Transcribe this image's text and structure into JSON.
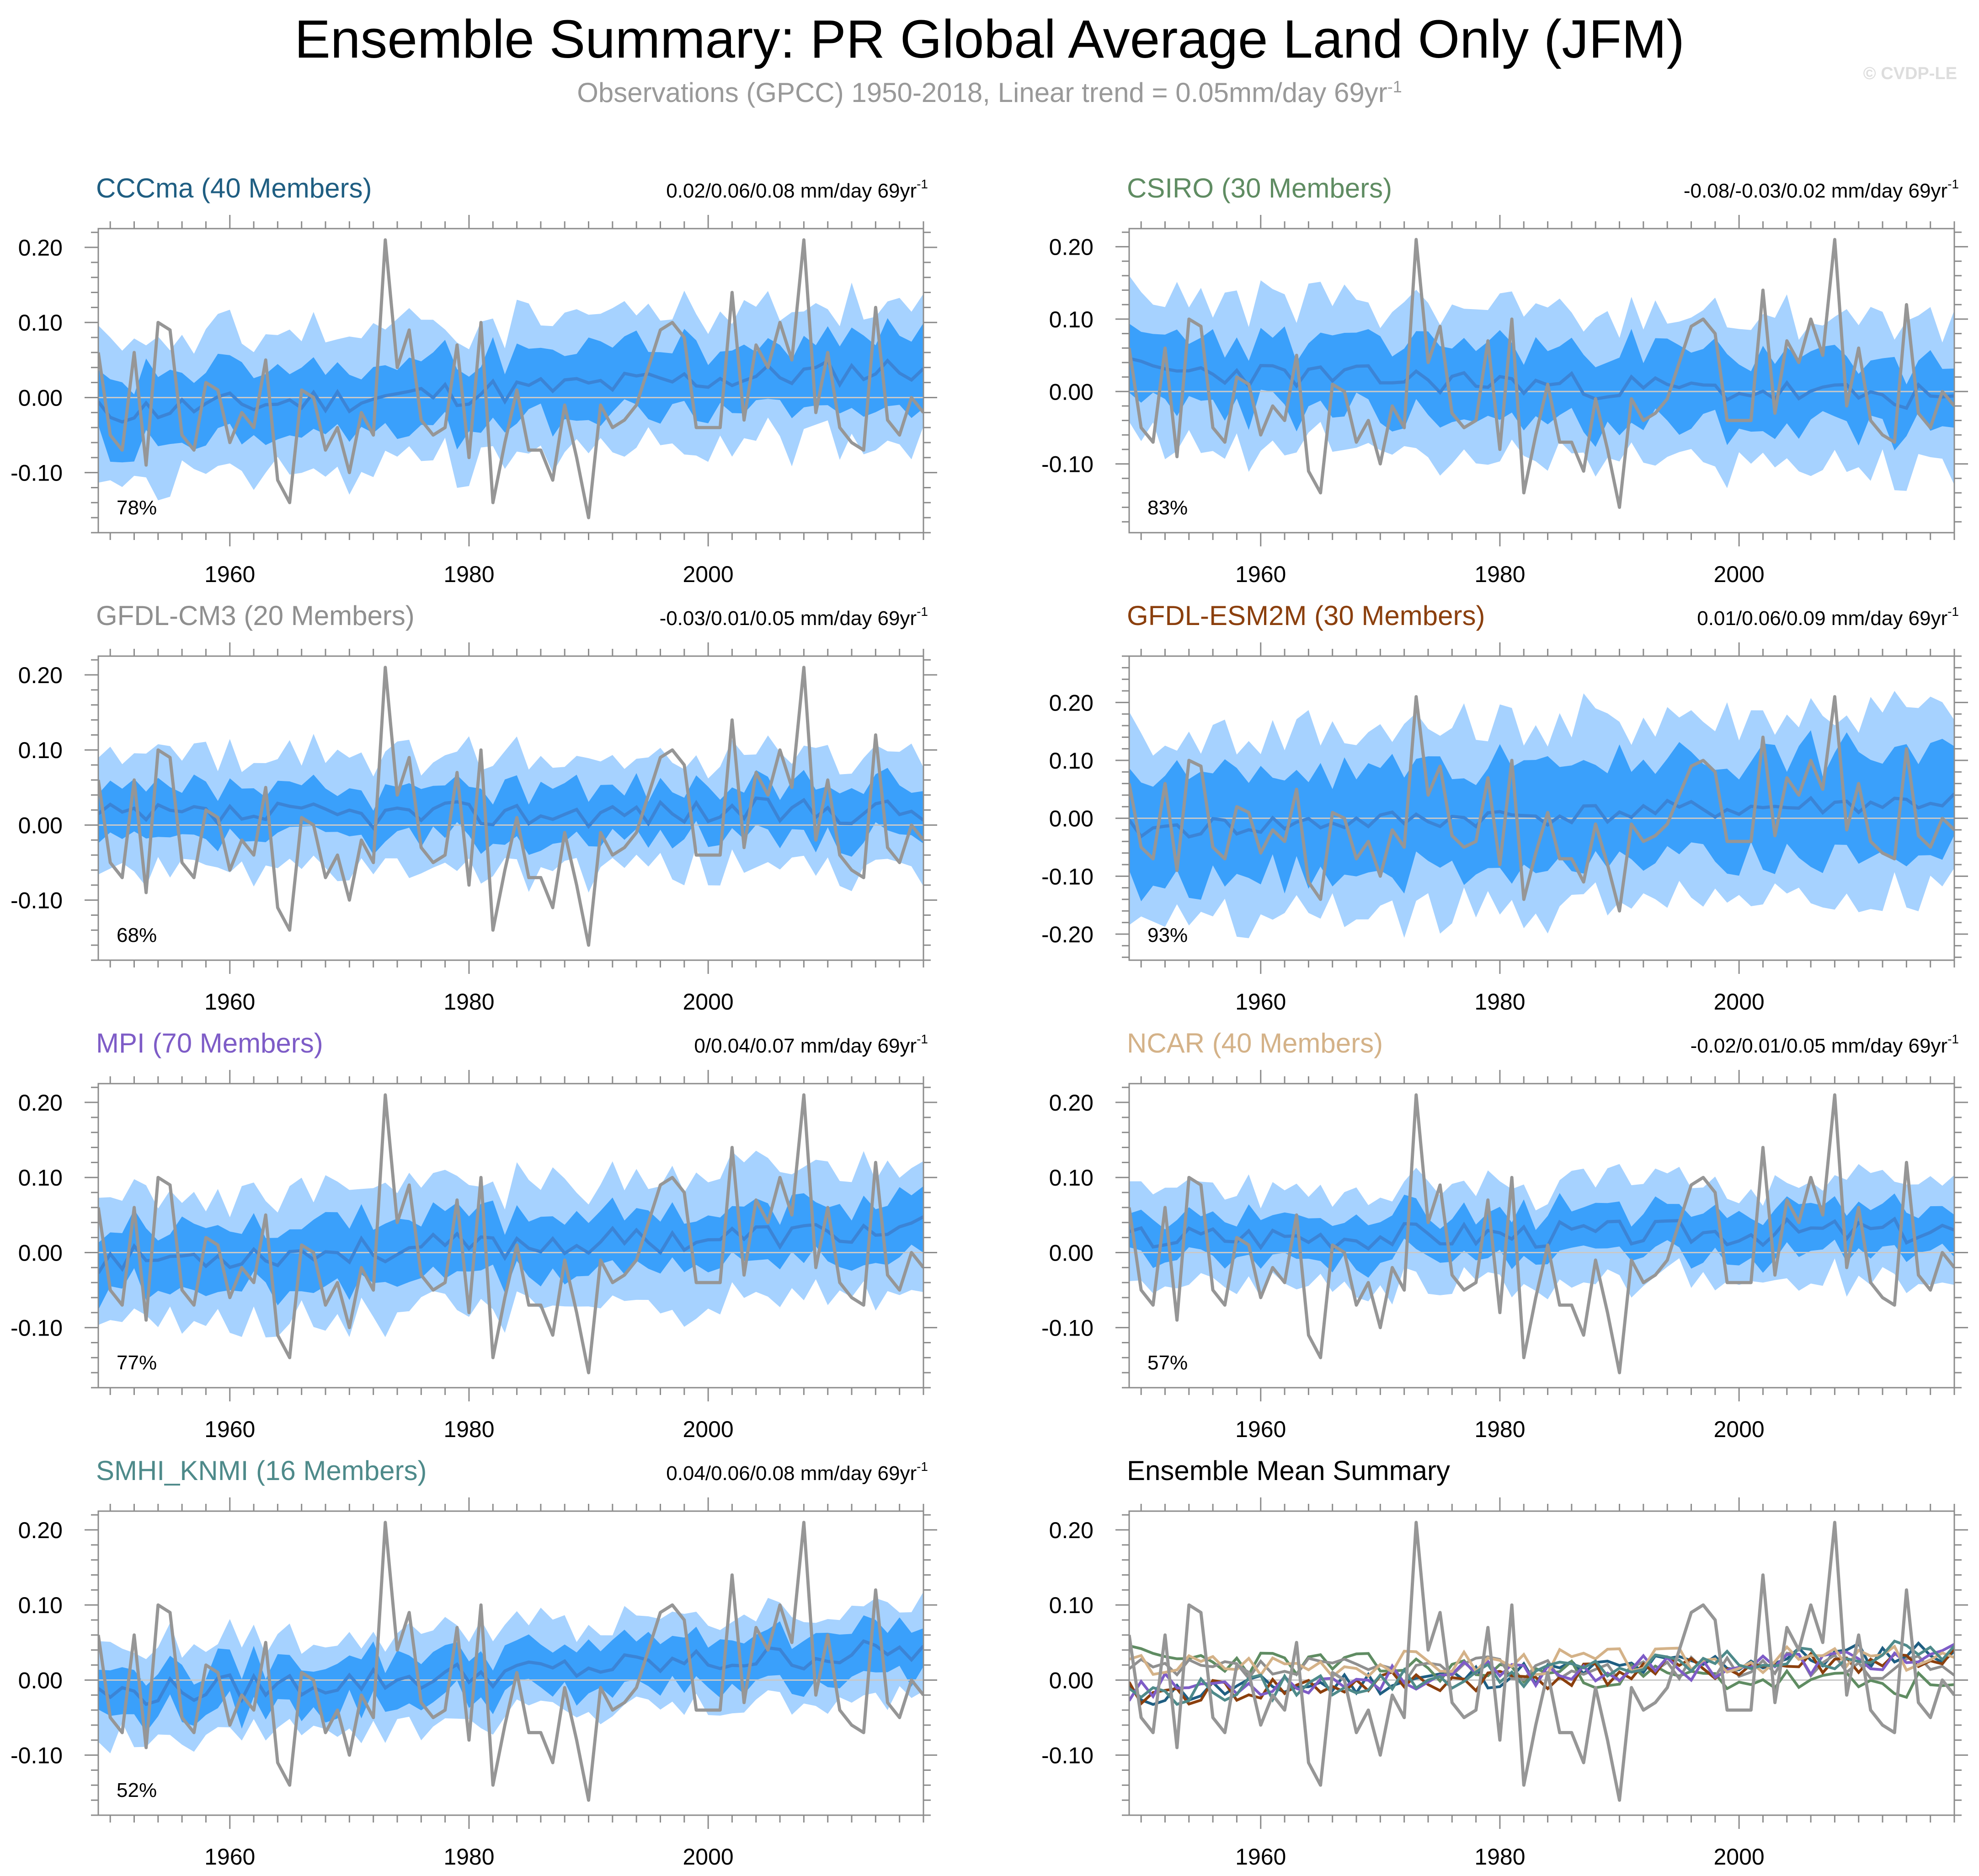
{
  "title": "Ensemble Summary: PR Global Average Land Only (JFM)",
  "subtitle": {
    "text": "Observations (GPCC) 1950-2018, Linear trend = 0.05mm/day 69yr",
    "superscript": "-1"
  },
  "copyright": "© CVDP-LE",
  "colors": {
    "outer_band": "#a6d2ff",
    "inner_band": "#3aa0fb",
    "ensemble_mean": "#3b84d6",
    "observations": "#969696",
    "zero_line": "#c8c8c8"
  },
  "chart_data": [
    {
      "type": "area",
      "title": "CCCma (40 Members)",
      "title_color": "#1f5e82",
      "trend": "0.02/0.06/0.08 mm/day 69yr",
      "trend_sup": "-1",
      "percent": "78%",
      "ylim": [
        -0.18,
        0.225
      ],
      "yticks": [
        0.2,
        0.1,
        0.0,
        -0.1
      ],
      "ytick_labels": [
        "0.20",
        "0.10",
        "0.00",
        "-0.10"
      ],
      "xlim": [
        1949,
        2018
      ],
      "xticks": [
        1960,
        1980,
        2000
      ],
      "xtick_labels": [
        "1960",
        "1980",
        "2000"
      ],
      "mean_trend": [
        -0.02,
        0.04
      ],
      "band_inner": 0.045,
      "band_outer": 0.09,
      "seed": 11
    },
    {
      "type": "area",
      "title": "CSIRO (30 Members)",
      "title_color": "#5f8c62",
      "trend": "-0.08/-0.03/0.02 mm/day 69yr",
      "trend_sup": "-1",
      "percent": "83%",
      "ylim": [
        -0.195,
        0.225
      ],
      "yticks": [
        0.2,
        0.1,
        0.0,
        -0.1
      ],
      "ytick_labels": [
        "0.20",
        "0.10",
        "0.00",
        "-0.10"
      ],
      "xlim": [
        1949,
        2018
      ],
      "xticks": [
        1960,
        1980,
        2000
      ],
      "xtick_labels": [
        "1960",
        "1980",
        "2000"
      ],
      "mean_trend": [
        0.03,
        -0.01
      ],
      "band_inner": 0.05,
      "band_outer": 0.1,
      "seed": 23
    },
    {
      "type": "area",
      "title": "GFDL-CM3 (20 Members)",
      "title_color": "#8f8f8f",
      "trend": "-0.03/0.01/0.05 mm/day 69yr",
      "trend_sup": "-1",
      "percent": "68%",
      "ylim": [
        -0.18,
        0.225
      ],
      "yticks": [
        0.2,
        0.1,
        0.0,
        -0.1
      ],
      "ytick_labels": [
        "0.20",
        "0.10",
        "0.00",
        "-0.10"
      ],
      "xlim": [
        1949,
        2018
      ],
      "xticks": [
        1960,
        1980,
        2000
      ],
      "xtick_labels": [
        "1960",
        "1980",
        "2000"
      ],
      "mean_trend": [
        0.01,
        0.02
      ],
      "band_inner": 0.035,
      "band_outer": 0.075,
      "seed": 37
    },
    {
      "type": "area",
      "title": "GFDL-ESM2M (30 Members)",
      "title_color": "#8b3f0d",
      "trend": "0.01/0.06/0.09 mm/day 69yr",
      "trend_sup": "-1",
      "percent": "93%",
      "ylim": [
        -0.245,
        0.28
      ],
      "yticks": [
        0.2,
        0.1,
        0.0,
        -0.1,
        -0.2
      ],
      "ytick_labels": [
        "0.20",
        "0.10",
        "0.00",
        "-0.10",
        "-0.20"
      ],
      "xlim": [
        1949,
        2018
      ],
      "xticks": [
        1960,
        1980,
        2000
      ],
      "xtick_labels": [
        "1960",
        "1980",
        "2000"
      ],
      "mean_trend": [
        -0.02,
        0.03
      ],
      "band_inner": 0.09,
      "band_outer": 0.16,
      "seed": 41
    },
    {
      "type": "area",
      "title": "MPI (70 Members)",
      "title_color": "#7e5cc7",
      "trend": "0/0.04/0.07 mm/day 69yr",
      "trend_sup": "-1",
      "percent": "77%",
      "ylim": [
        -0.18,
        0.225
      ],
      "yticks": [
        0.2,
        0.1,
        0.0,
        -0.1
      ],
      "ytick_labels": [
        "0.20",
        "0.10",
        "0.00",
        "-0.10"
      ],
      "xlim": [
        1949,
        2018
      ],
      "xticks": [
        1960,
        1980,
        2000
      ],
      "xtick_labels": [
        "1960",
        "1980",
        "2000"
      ],
      "mean_trend": [
        -0.01,
        0.03
      ],
      "band_inner": 0.04,
      "band_outer": 0.085,
      "seed": 53
    },
    {
      "type": "area",
      "title": "NCAR (40 Members)",
      "title_color": "#d4b288",
      "trend": "-0.02/0.01/0.05 mm/day 69yr",
      "trend_sup": "-1",
      "percent": "57%",
      "ylim": [
        -0.18,
        0.225
      ],
      "yticks": [
        0.2,
        0.1,
        0.0,
        -0.1
      ],
      "ytick_labels": [
        "0.20",
        "0.10",
        "0.00",
        "-0.10"
      ],
      "xlim": [
        1949,
        2018
      ],
      "xticks": [
        1960,
        1980,
        2000
      ],
      "xtick_labels": [
        "1960",
        "1980",
        "2000"
      ],
      "mean_trend": [
        0.02,
        0.03
      ],
      "band_inner": 0.03,
      "band_outer": 0.065,
      "seed": 67
    },
    {
      "type": "area",
      "title": "SMHI_KNMI (16 Members)",
      "title_color": "#4e8a8a",
      "trend": "0.04/0.06/0.08 mm/day 69yr",
      "trend_sup": "-1",
      "percent": "52%",
      "ylim": [
        -0.18,
        0.225
      ],
      "yticks": [
        0.2,
        0.1,
        0.0,
        -0.1
      ],
      "ytick_labels": [
        "0.20",
        "0.10",
        "0.00",
        "-0.10"
      ],
      "xlim": [
        1949,
        2018
      ],
      "xticks": [
        1960,
        1980,
        2000
      ],
      "xtick_labels": [
        "1960",
        "1980",
        "2000"
      ],
      "mean_trend": [
        -0.02,
        0.04
      ],
      "band_inner": 0.03,
      "band_outer": 0.06,
      "seed": 79
    },
    {
      "type": "line",
      "title": "Ensemble Mean Summary",
      "title_color": "#000000",
      "trend": "",
      "trend_sup": "",
      "percent": "",
      "ylim": [
        -0.18,
        0.225
      ],
      "yticks": [
        0.2,
        0.1,
        0.0,
        -0.1
      ],
      "ytick_labels": [
        "0.20",
        "0.10",
        "0.00",
        "-0.10"
      ],
      "xlim": [
        1949,
        2018
      ],
      "xticks": [
        1960,
        1980,
        2000
      ],
      "xtick_labels": [
        "1960",
        "1980",
        "2000"
      ],
      "series_names": [
        "CCCma",
        "CSIRO",
        "GFDL-CM3",
        "GFDL-ESM2M",
        "MPI",
        "NCAR",
        "SMHI_KNMI"
      ],
      "series_colors": [
        "#1f5e82",
        "#5f8c62",
        "#8f8f8f",
        "#8b3f0d",
        "#7e5cc7",
        "#d4b288",
        "#4e8a8a"
      ],
      "series_seeds": [
        11,
        23,
        37,
        41,
        53,
        67,
        79
      ],
      "series_trends": [
        [
          -0.02,
          0.04
        ],
        [
          0.03,
          -0.01
        ],
        [
          0.01,
          0.02
        ],
        [
          -0.02,
          0.03
        ],
        [
          -0.01,
          0.03
        ],
        [
          0.02,
          0.03
        ],
        [
          -0.02,
          0.04
        ]
      ]
    }
  ],
  "observations": {
    "label": "Observations (GPCC)",
    "years": [
      1949,
      2018
    ],
    "values": [
      0.06,
      -0.05,
      -0.07,
      0.06,
      -0.09,
      0.1,
      0.09,
      -0.05,
      -0.07,
      0.02,
      0.01,
      -0.06,
      -0.02,
      -0.04,
      0.05,
      -0.11,
      -0.14,
      0.01,
      0.0,
      -0.07,
      -0.04,
      -0.1,
      -0.02,
      -0.05,
      0.21,
      0.04,
      0.09,
      -0.03,
      -0.05,
      -0.04,
      0.07,
      -0.08,
      0.1,
      -0.14,
      -0.06,
      0.01,
      -0.07,
      -0.07,
      -0.11,
      -0.01,
      -0.08,
      -0.16,
      -0.01,
      -0.04,
      -0.03,
      -0.01,
      0.04,
      0.09,
      0.1,
      0.08,
      -0.04,
      -0.04,
      -0.04,
      0.14,
      -0.03,
      0.07,
      0.04,
      0.1,
      0.05,
      0.21,
      -0.02,
      0.06,
      -0.04,
      -0.06,
      -0.07,
      0.12,
      -0.03,
      -0.05,
      0.0,
      -0.02
    ]
  }
}
